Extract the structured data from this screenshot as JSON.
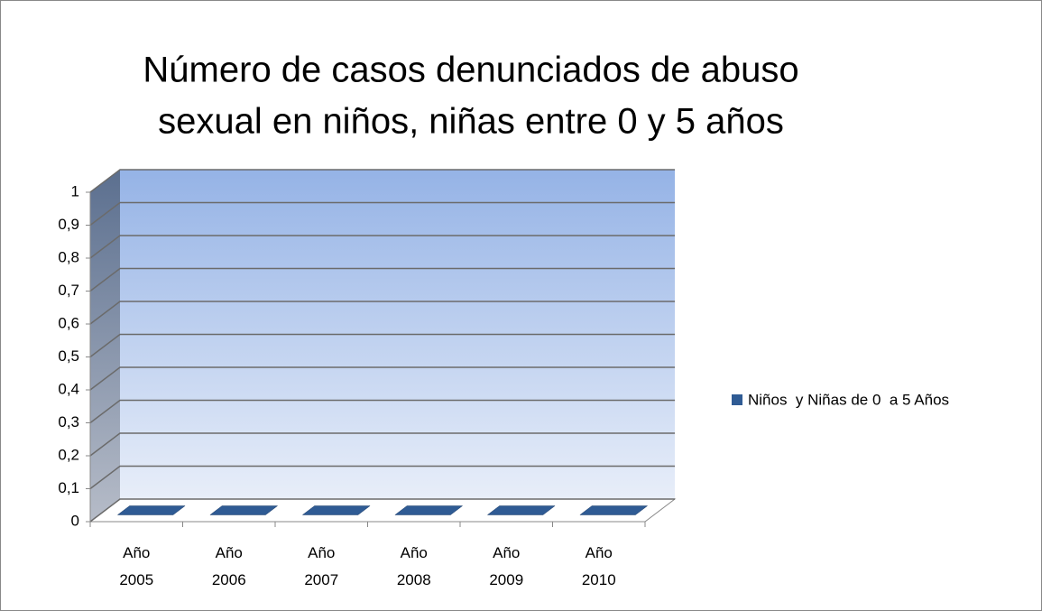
{
  "chart_data": {
    "type": "bar3d",
    "title": [
      "Número de casos denunciados de abuso",
      "sexual en niños, niñas entre 0 y 5 años"
    ],
    "categories": [
      "Año 2005",
      "Año 2006",
      "Año 2007",
      "Año 2008",
      "Año 2009",
      "Año 2010"
    ],
    "series": [
      {
        "name": "Niños  y Niñas de 0  a 5 Años",
        "color": "#2f5b94",
        "values": [
          0,
          0,
          0,
          0,
          0,
          0
        ]
      }
    ],
    "ylim": [
      0,
      1
    ],
    "yticks": [
      0,
      {
        "value": 0.1,
        "label": "0,1"
      },
      {
        "value": 0.2,
        "label": "0,2"
      },
      {
        "value": 0.3,
        "label": "0,3"
      },
      {
        "value": 0.4,
        "label": "0,4"
      },
      {
        "value": 0.5,
        "label": "0,5"
      },
      {
        "value": 0.6,
        "label": "0,6"
      },
      {
        "value": 0.7,
        "label": "0,7"
      },
      {
        "value": 0.8,
        "label": "0,8"
      },
      {
        "value": 0.9,
        "label": "0,9"
      },
      1
    ],
    "grid": true,
    "legend": "right"
  }
}
